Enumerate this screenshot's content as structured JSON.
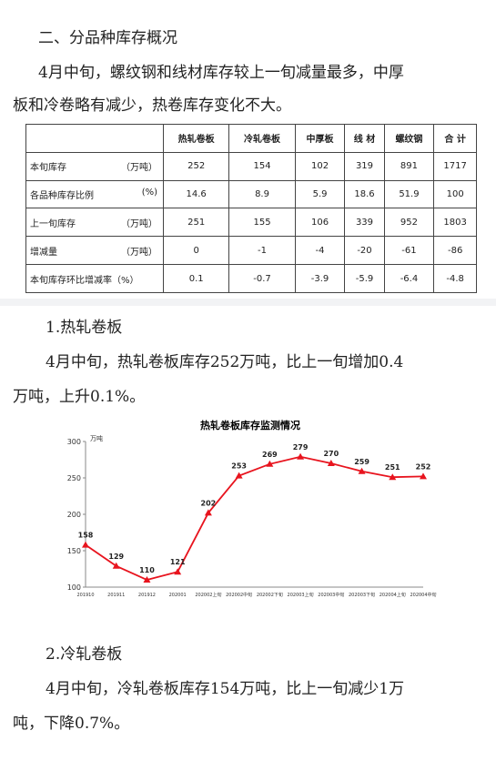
{
  "section_heading": "二、分品种库存概况",
  "intro_line1": "4月中旬，螺纹钢和线材库存较上一旬减量最多，中厚",
  "intro_line2": "板和冷卷略有减少，热卷库存变化不大。",
  "table": {
    "headers": [
      "",
      "热轧卷板",
      "冷轧卷板",
      "中厚板",
      "线 材",
      "螺纹钢",
      "合 计"
    ],
    "rows": [
      {
        "label": "本旬库存",
        "unit": "（万吨）",
        "cells": [
          "252",
          "154",
          "102",
          "319",
          "891",
          "1717"
        ]
      },
      {
        "label": "各品种库存比例",
        "unit": "(%)",
        "cells": [
          "14.6",
          "8.9",
          "5.9",
          "18.6",
          "51.9",
          "100"
        ]
      },
      {
        "label": "上一旬库存",
        "unit": "（万吨）",
        "cells": [
          "251",
          "155",
          "106",
          "339",
          "952",
          "1803"
        ]
      },
      {
        "label": "增减量",
        "unit": "（万吨）",
        "cells": [
          "0",
          "-1",
          "-4",
          "-20",
          "-61",
          "-86"
        ]
      },
      {
        "label": "本旬库存环比增减率（%）",
        "unit": "",
        "cells": [
          "0.1",
          "-0.7",
          "-3.9",
          "-5.9",
          "-6.4",
          "-4.8"
        ]
      }
    ]
  },
  "sub1_heading": "1.热轧卷板",
  "sub1_line1": "4月中旬，热轧卷板库存252万吨，比上一旬增加0.4",
  "sub1_line2": "万吨，上升0.1%。",
  "chart_data": {
    "type": "line",
    "title": "热轧卷板库存监测情况",
    "ylabel": "万吨",
    "ylim": [
      100,
      300
    ],
    "yticks": [
      100,
      150,
      200,
      250,
      300
    ],
    "categories": [
      "201910",
      "201911",
      "201912",
      "202001",
      "202002上旬",
      "202002中旬",
      "202002下旬",
      "202003上旬",
      "202003中旬",
      "202003下旬",
      "202004上旬",
      "202004中旬"
    ],
    "x_tick_labels": [
      "201910",
      "201911",
      "201912",
      "202001",
      "202002上旬",
      "202002中旬",
      "202002下旬",
      "202003上旬",
      "202003中旬",
      "202003下旬",
      "202004上旬",
      "202004中旬"
    ],
    "values": [
      158,
      129,
      110,
      121,
      202,
      253,
      269,
      279,
      270,
      259,
      251,
      252
    ],
    "color": "#e8141e",
    "grid": false
  },
  "sub2_heading": "2.冷轧卷板",
  "sub2_line1": "4月中旬，冷轧卷板库存154万吨，比上一旬减少1万",
  "sub2_line2": "吨，下降0.7%。"
}
